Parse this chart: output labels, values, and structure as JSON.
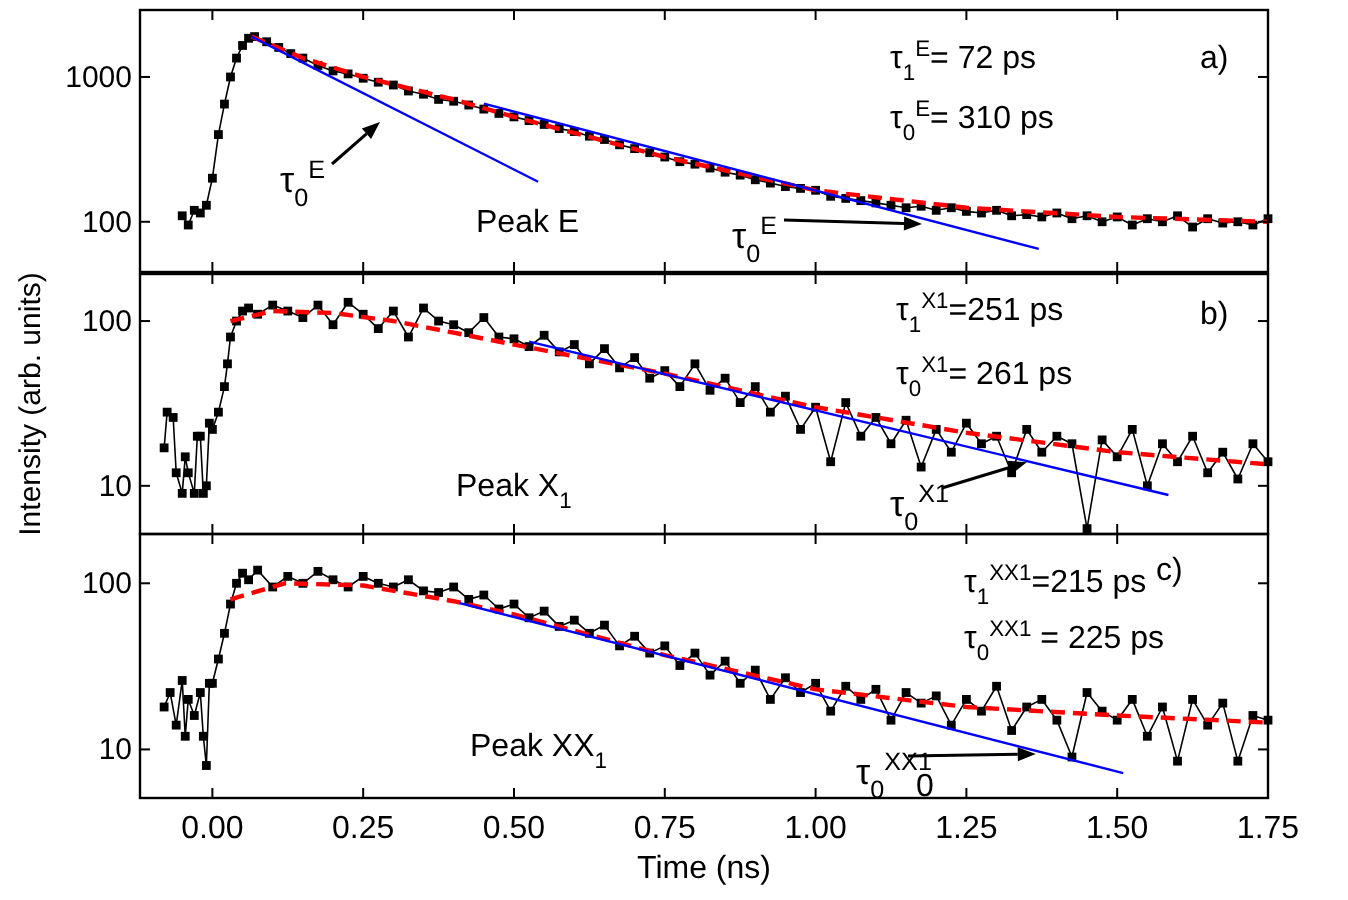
{
  "chart_data": [
    {
      "type": "line",
      "xlim": [
        -0.12,
        1.75
      ],
      "xticks": [
        {
          "value": 0,
          "label": null
        },
        {
          "value": 0.25,
          "label": null
        },
        {
          "value": 0.5,
          "label": null
        },
        {
          "value": 0.75,
          "label": null
        },
        {
          "value": 1,
          "label": null
        },
        {
          "value": 1.25,
          "label": null
        },
        {
          "value": 1.5,
          "label": null
        },
        {
          "value": 1.75,
          "label": null
        }
      ],
      "ylim": [
        45,
        2900
      ],
      "yticks": [
        100,
        1000
      ],
      "log": true,
      "tick_labels": "y",
      "series": [
        {
          "color": "#000000",
          "marker": "square",
          "line_style": "solid",
          "x": [
            -0.05,
            -0.04,
            -0.03,
            -0.02,
            -0.01,
            0,
            0.01,
            0.02,
            0.03,
            0.04,
            0.05,
            0.06,
            0.07,
            0.09,
            0.11,
            0.13,
            0.15,
            0.175,
            0.2,
            0.225,
            0.25,
            0.275,
            0.3,
            0.325,
            0.35,
            0.375,
            0.4,
            0.425,
            0.45,
            0.475,
            0.5,
            0.525,
            0.55,
            0.575,
            0.6,
            0.625,
            0.65,
            0.675,
            0.7,
            0.725,
            0.75,
            0.775,
            0.8,
            0.825,
            0.85,
            0.875,
            0.9,
            0.925,
            0.95,
            0.975,
            1,
            1.025,
            1.05,
            1.075,
            1.1,
            1.125,
            1.15,
            1.175,
            1.2,
            1.225,
            1.25,
            1.275,
            1.3,
            1.325,
            1.35,
            1.375,
            1.4,
            1.425,
            1.45,
            1.475,
            1.5,
            1.525,
            1.55,
            1.575,
            1.6,
            1.625,
            1.65,
            1.675,
            1.7,
            1.725,
            1.75
          ],
          "values": [
            110,
            95,
            120,
            115,
            130,
            200,
            400,
            650,
            1000,
            1350,
            1650,
            1850,
            1900,
            1750,
            1600,
            1450,
            1350,
            1200,
            1100,
            1050,
            980,
            920,
            880,
            800,
            760,
            700,
            680,
            640,
            600,
            560,
            530,
            500,
            470,
            440,
            420,
            390,
            370,
            340,
            320,
            300,
            280,
            260,
            250,
            235,
            220,
            210,
            195,
            185,
            175,
            170,
            165,
            150,
            145,
            140,
            135,
            130,
            125,
            128,
            120,
            125,
            118,
            115,
            120,
            110,
            112,
            108,
            115,
            105,
            110,
            100,
            108,
            95,
            105,
            100,
            110,
            92,
            105,
            98,
            100,
            95,
            105
          ]
        },
        {
          "color": "#ff0000",
          "marker": "none",
          "line_style": "dashed",
          "x": [
            0.065,
            0.15,
            0.25,
            0.4,
            0.5,
            0.75,
            1,
            1.25,
            1.5,
            1.75
          ],
          "values": [
            1900,
            1350,
            1000,
            700,
            530,
            280,
            165,
            125,
            108,
            100
          ]
        },
        {
          "color": "#0000ff",
          "marker": "none",
          "line_style": "solid",
          "x": [
            0.065,
            0.54
          ],
          "values": [
            1900,
            189
          ]
        },
        {
          "color": "#0000ff",
          "marker": "none",
          "line_style": "solid",
          "x": [
            0.45,
            1.37
          ],
          "values": [
            655,
            65
          ]
        }
      ],
      "annotations": [
        "τ$_{1}$$^{E}$= 72 ps",
        "τ$_{0}$$^{E}$= 310 ps",
        "a)",
        "Peak E",
        "τ$_{0}$$^{E}$",
        "τ$_{0}$$^{E}$"
      ]
    },
    {
      "type": "line",
      "xlim": [
        -0.12,
        1.75
      ],
      "xticks": [
        {
          "value": 0,
          "label": null
        },
        {
          "value": 0.25,
          "label": null
        },
        {
          "value": 0.5,
          "label": null
        },
        {
          "value": 0.75,
          "label": null
        },
        {
          "value": 1,
          "label": null
        },
        {
          "value": 1.25,
          "label": null
        },
        {
          "value": 1.5,
          "label": null
        },
        {
          "value": 1.75,
          "label": null
        }
      ],
      "ylim": [
        5.1,
        193
      ],
      "yticks": [
        10,
        100
      ],
      "log": true,
      "tick_labels": "y",
      "ylabel": "Intensity (arb. units)",
      "series": [
        {
          "color": "#000000",
          "marker": "square",
          "line_style": "solid",
          "x": [
            -0.08,
            -0.075,
            -0.065,
            -0.06,
            -0.05,
            -0.045,
            -0.04,
            -0.03,
            -0.025,
            -0.02,
            -0.015,
            -0.01,
            -0.005,
            0,
            0.01,
            0.02,
            0.025,
            0.03,
            0.04,
            0.05,
            0.06,
            0.075,
            0.1,
            0.125,
            0.15,
            0.175,
            0.2,
            0.225,
            0.25,
            0.275,
            0.3,
            0.325,
            0.35,
            0.375,
            0.4,
            0.425,
            0.45,
            0.475,
            0.5,
            0.525,
            0.55,
            0.575,
            0.6,
            0.625,
            0.65,
            0.675,
            0.7,
            0.725,
            0.75,
            0.775,
            0.8,
            0.825,
            0.85,
            0.875,
            0.9,
            0.925,
            0.95,
            0.975,
            1,
            1.025,
            1.05,
            1.075,
            1.1,
            1.125,
            1.15,
            1.175,
            1.2,
            1.225,
            1.25,
            1.275,
            1.3,
            1.325,
            1.35,
            1.375,
            1.4,
            1.425,
            1.45,
            1.475,
            1.5,
            1.525,
            1.55,
            1.575,
            1.6,
            1.625,
            1.65,
            1.675,
            1.7,
            1.725,
            1.75
          ],
          "values": [
            17,
            28,
            26,
            12,
            9,
            15,
            12,
            9,
            20,
            20,
            9,
            10,
            24,
            22,
            28,
            40,
            55,
            80,
            100,
            115,
            120,
            110,
            125,
            115,
            105,
            125,
            95,
            130,
            110,
            90,
            115,
            80,
            120,
            100,
            95,
            85,
            105,
            80,
            78,
            70,
            82,
            65,
            72,
            55,
            68,
            52,
            60,
            45,
            50,
            40,
            55,
            38,
            45,
            32,
            40,
            28,
            35,
            22,
            30,
            14,
            32,
            20,
            26,
            18,
            25,
            13,
            22,
            16,
            24,
            18,
            20,
            12,
            22,
            16,
            20,
            18,
            5.5,
            19,
            15,
            22,
            10,
            18,
            14,
            20,
            12,
            16,
            11,
            18,
            14
          ]
        },
        {
          "color": "#ff0000",
          "marker": "none",
          "line_style": "dashed",
          "x": [
            0.03,
            0.1,
            0.2,
            0.3,
            0.4,
            0.5,
            0.75,
            1,
            1.25,
            1.5,
            1.75
          ],
          "values": [
            100,
            115,
            112,
            100,
            85,
            72,
            48,
            30,
            21,
            16,
            13.5
          ]
        },
        {
          "color": "#0000ff",
          "marker": "none",
          "line_style": "solid",
          "x": [
            0.525,
            1.585
          ],
          "values": [
            75,
            8.8
          ]
        }
      ],
      "annotations": [
        "τ$_{1}$$^{X1}$=251 ps",
        "τ$_{0}$$^{X1}$= 261 ps",
        "b)",
        "Peak X$_{1}$",
        {
          "text": "τ$_{0}$$^{X1}$",
          "x": 1.35,
          "y": 13.9
        }
      ]
    },
    {
      "type": "line",
      "xlim": [
        -0.12,
        1.75
      ],
      "xticks": [
        {
          "value": 0,
          "label": "0.00"
        },
        {
          "value": 0.25,
          "label": "0.25"
        },
        {
          "value": 0.5,
          "label": "0.50"
        },
        {
          "value": 0.75,
          "label": "0.75"
        },
        {
          "value": 1,
          "label": "1.00"
        },
        {
          "value": 1.25,
          "label": "1.25"
        },
        {
          "value": 1.5,
          "label": "1.50"
        },
        {
          "value": 1.75,
          "label": "1.75"
        }
      ],
      "ylim": [
        5.1,
        198
      ],
      "yticks": [
        10,
        100
      ],
      "log": true,
      "xlabel": "Time (ns)",
      "series": [
        {
          "color": "#000000",
          "marker": "square",
          "line_style": "solid",
          "x": [
            -0.08,
            -0.07,
            -0.06,
            -0.05,
            -0.045,
            -0.04,
            -0.03,
            -0.02,
            -0.015,
            -0.01,
            -0.005,
            0,
            0.01,
            0.02,
            0.03,
            0.04,
            0.05,
            0.06,
            0.075,
            0.1,
            0.125,
            0.15,
            0.175,
            0.2,
            0.225,
            0.25,
            0.275,
            0.3,
            0.325,
            0.35,
            0.375,
            0.4,
            0.425,
            0.45,
            0.475,
            0.5,
            0.525,
            0.55,
            0.575,
            0.6,
            0.625,
            0.65,
            0.675,
            0.7,
            0.725,
            0.75,
            0.775,
            0.8,
            0.825,
            0.85,
            0.875,
            0.9,
            0.925,
            0.95,
            0.975,
            1,
            1.025,
            1.05,
            1.075,
            1.1,
            1.125,
            1.15,
            1.175,
            1.2,
            1.225,
            1.25,
            1.275,
            1.3,
            1.325,
            1.35,
            1.375,
            1.4,
            1.425,
            1.45,
            1.475,
            1.5,
            1.525,
            1.55,
            1.575,
            1.6,
            1.625,
            1.65,
            1.675,
            1.7,
            1.725,
            1.75
          ],
          "values": [
            18,
            22,
            14,
            26,
            12,
            20,
            16,
            22,
            12,
            8,
            25,
            25,
            35,
            50,
            75,
            100,
            115,
            105,
            120,
            95,
            110,
            100,
            118,
            105,
            95,
            110,
            100,
            95,
            105,
            90,
            88,
            95,
            80,
            85,
            70,
            75,
            62,
            68,
            55,
            60,
            50,
            56,
            42,
            48,
            38,
            42,
            32,
            38,
            28,
            34,
            25,
            30,
            20,
            27,
            22,
            25,
            17,
            24,
            20,
            23,
            15,
            22,
            19,
            21,
            14,
            20,
            17,
            24,
            13,
            18,
            20,
            15,
            9,
            22,
            17,
            15,
            20,
            12,
            18,
            8.5,
            20,
            14,
            19,
            8.5,
            16,
            15
          ]
        },
        {
          "color": "#ff0000",
          "marker": "none",
          "line_style": "dashed",
          "x": [
            0.03,
            0.12,
            0.25,
            0.4,
            0.5,
            0.75,
            1,
            1.25,
            1.5,
            1.75
          ],
          "values": [
            80,
            100,
            97,
            78,
            65,
            37,
            23,
            18,
            16,
            14.5
          ]
        },
        {
          "color": "#0000ff",
          "marker": "none",
          "line_style": "solid",
          "x": [
            0.41,
            1.51
          ],
          "values": [
            76,
            7.2
          ]
        }
      ],
      "annotations": [
        "τ$_{1}$$^{XX1}$=215 ps",
        "c)",
        "τ$_{0}$$^{XX1}$ = 225 ps",
        "Peak XX$_{1}$",
        {
          "text": "τ$_{0}$$^{XX1}$",
          "x": 1.365,
          "y": 9.4
        },
        "0"
      ]
    }
  ]
}
